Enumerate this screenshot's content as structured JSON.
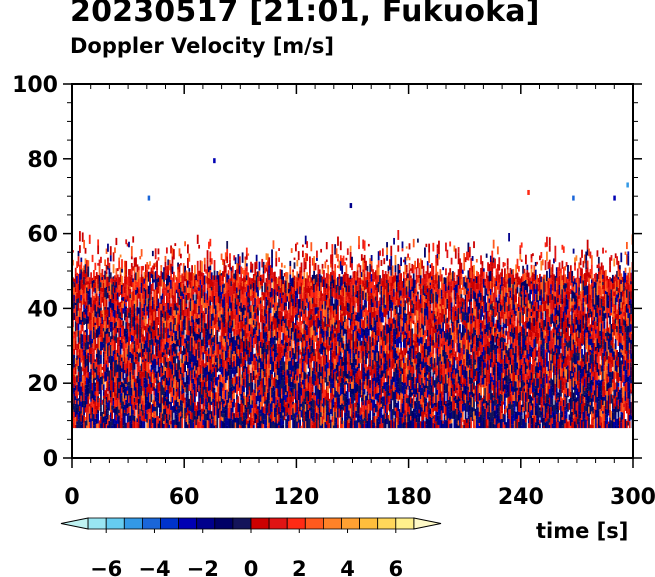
{
  "chart_data": {
    "type": "heatmap",
    "title": "20230517 [21:01, Fukuoka]",
    "subtitle": "Doppler Velocity [m/s]",
    "xlabel": "time [s]",
    "ylabel": "",
    "xlim": [
      0,
      300
    ],
    "ylim": [
      0,
      100
    ],
    "xticks": [
      "0",
      "60",
      "120",
      "180",
      "240",
      "300"
    ],
    "yticks": [
      "0",
      "20",
      "40",
      "60",
      "80",
      "100"
    ],
    "x_tick_values": [
      0,
      60,
      120,
      180,
      240,
      300
    ],
    "y_tick_values": [
      0,
      20,
      40,
      60,
      80,
      100
    ],
    "data_height_range": [
      8,
      64
    ],
    "dense_layer_top": 48,
    "sparse_points": [
      {
        "t": 76,
        "h": 79.5,
        "v": -3
      },
      {
        "t": 41,
        "h": 69.5,
        "v": -4
      },
      {
        "t": 149,
        "h": 67.5,
        "v": -2
      },
      {
        "t": 244,
        "h": 71,
        "v": 2
      },
      {
        "t": 268,
        "h": 69.5,
        "v": -4
      },
      {
        "t": 290,
        "h": 69.5,
        "v": -3
      },
      {
        "t": 297,
        "h": 73,
        "v": -5
      }
    ],
    "colorbar": {
      "label": "Doppler Velocity [m/s]",
      "range": [
        -7.5,
        7.5
      ],
      "tick_labels": [
        "−6",
        "−4",
        "−2",
        "0",
        "2",
        "4",
        "6"
      ],
      "tick_values": [
        -6,
        -4,
        -2,
        0,
        2,
        4,
        6
      ],
      "colors_negative": [
        "#bff2f2",
        "#99e6f2",
        "#66ccf0",
        "#3399e6",
        "#1a66d9",
        "#0033cc",
        "#0000b3",
        "#00008c",
        "#000066",
        "#14145a"
      ],
      "colors_positive": [
        "#cc0000",
        "#e01414",
        "#ff2a14",
        "#ff5a1e",
        "#ff8228",
        "#ffa032",
        "#ffbe3c",
        "#ffd75a",
        "#fff08c",
        "#fffac8"
      ]
    },
    "grid": false,
    "legend": "colorbar-bottom"
  }
}
